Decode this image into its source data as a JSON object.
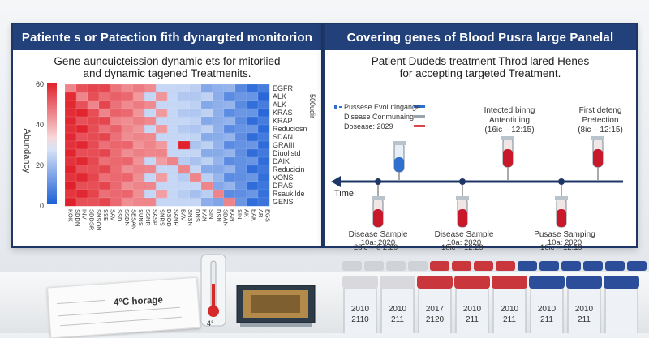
{
  "left_panel": {
    "title": "Patiente s or Patection fith dynargted monitorion",
    "subtitle_line1": "Gene auncuicteission dynamic ets for mitoriied",
    "subtitle_line2": "and dynamic tagened Treatmenits.",
    "y_label": "Abundancy",
    "y_ticks": [
      "0",
      "20",
      "40",
      "60"
    ],
    "scale_top": "500udir",
    "genes": [
      "EGFR",
      "ALK",
      "ALK",
      "KRAS",
      "KRAP",
      "Reduciosn",
      "SDAN",
      "GRAIII",
      "Diuolistd",
      "DAIK",
      "Reducicin",
      "VONS",
      "DRAS",
      "Rsaukilde",
      "GENS"
    ],
    "columns": [
      "KOK",
      "SDDN",
      "INV",
      "SDDSR",
      "SNSON",
      "SSE",
      "SAV",
      "SSD",
      "SSDN",
      "SESAN",
      "SUNS",
      "SSNR",
      "SASP",
      "SNRS",
      "DSOD",
      "SANR",
      "BAV",
      "SNSN",
      "DNS",
      "KAN",
      "SIN",
      "DSN",
      "SDAN",
      "KAN",
      "SIN",
      "AK",
      "EAK",
      "AR",
      "EGS"
    ]
  },
  "right_panel": {
    "title": "Covering genes of Blood Pusra large Panelal",
    "subtitle_line1": "Patient Dudeds treatment Throd lared Henes",
    "subtitle_line2": "for accepting targeted Treatment.",
    "legend": [
      {
        "label": "Pussese Evolutingange",
        "color": "#2f6fd0"
      },
      {
        "label": "Disease Conmunaing",
        "color": "#9aa4ae"
      },
      {
        "label": "Dosease: 2029",
        "color": "#d9464b"
      }
    ],
    "time_label": "Time",
    "top_events": [
      {
        "title1": "Intected binng",
        "title2": "Anteotiuing",
        "date": "(16ic – 12:15)"
      },
      {
        "title1": "First deteng",
        "title2": "Pretection",
        "date": "(8ic – 12:15)"
      }
    ],
    "bottom_events": [
      {
        "title": "Disease Sample",
        "line2": "10a: 2020",
        "line3": "28ic – 0 2:29"
      },
      {
        "title": "Disease Sample",
        "line2": "10a: 2020",
        "line3": "18ic – 12:29"
      },
      {
        "title": "Pusase Samping",
        "line2": "10a: 2020",
        "line3": "16ic – 12:19"
      }
    ]
  },
  "scene": {
    "paper_text": "4°C horage",
    "thermometer_label": "4°",
    "tube_labels": [
      "2010",
      "2010",
      "2017",
      "2010",
      "2010",
      "2010",
      "2010"
    ],
    "tube_labels2": [
      "2110",
      "211",
      "2120",
      "211",
      "211",
      "211",
      "211"
    ]
  }
}
